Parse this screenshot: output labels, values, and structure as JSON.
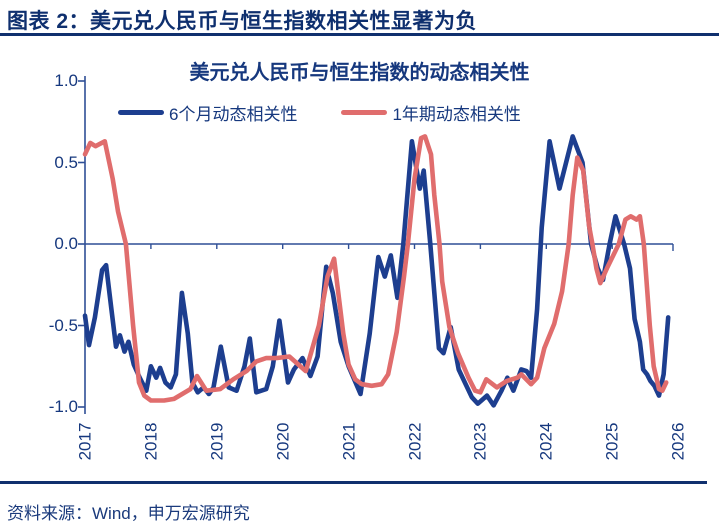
{
  "page": {
    "header_title": "图表 2：美元兑人民币与恒生指数相关性显著为负",
    "footer_source": "资料来源：Wind，申万宏源研究"
  },
  "colors": {
    "header_navy": "#0e2f6e",
    "axis_navy": "#2f4f96",
    "blue_line": "#1d3e8f",
    "red_line": "#e06d6d"
  },
  "chart_data": {
    "type": "line",
    "title": "美元兑人民币与恒生指数的动态相关性",
    "x_range": [
      2017,
      2026
    ],
    "y_range": [
      -1.0,
      1.0
    ],
    "y_ticks": [
      "1.0",
      "0.5",
      "0.0",
      "-0.5",
      "-1.0"
    ],
    "y_tick_values": [
      1.0,
      0.5,
      0.0,
      -0.5,
      -1.0
    ],
    "x_ticks": [
      "2017",
      "2018",
      "2019",
      "2020",
      "2021",
      "2022",
      "2023",
      "2024",
      "2025",
      "2026"
    ],
    "x_tick_values": [
      2017,
      2018,
      2019,
      2020,
      2021,
      2022,
      2023,
      2024,
      2025,
      2026
    ],
    "legend_position": "top",
    "grid": "zero-baseline-only",
    "series": [
      {
        "name": "6个月动态相关性",
        "color": "#1d3e8f",
        "points": [
          [
            2017.0,
            -0.44
          ],
          [
            2017.06,
            -0.62
          ],
          [
            2017.15,
            -0.45
          ],
          [
            2017.26,
            -0.16
          ],
          [
            2017.32,
            -0.13
          ],
          [
            2017.4,
            -0.4
          ],
          [
            2017.47,
            -0.63
          ],
          [
            2017.53,
            -0.56
          ],
          [
            2017.6,
            -0.66
          ],
          [
            2017.66,
            -0.6
          ],
          [
            2017.74,
            -0.74
          ],
          [
            2017.83,
            -0.82
          ],
          [
            2017.93,
            -0.9
          ],
          [
            2018.0,
            -0.75
          ],
          [
            2018.08,
            -0.82
          ],
          [
            2018.14,
            -0.76
          ],
          [
            2018.22,
            -0.85
          ],
          [
            2018.3,
            -0.88
          ],
          [
            2018.38,
            -0.8
          ],
          [
            2018.47,
            -0.3
          ],
          [
            2018.56,
            -0.55
          ],
          [
            2018.63,
            -0.85
          ],
          [
            2018.71,
            -0.91
          ],
          [
            2018.8,
            -0.88
          ],
          [
            2018.88,
            -0.92
          ],
          [
            2018.95,
            -0.88
          ],
          [
            2019.06,
            -0.63
          ],
          [
            2019.18,
            -0.88
          ],
          [
            2019.3,
            -0.9
          ],
          [
            2019.42,
            -0.75
          ],
          [
            2019.5,
            -0.58
          ],
          [
            2019.6,
            -0.91
          ],
          [
            2019.75,
            -0.89
          ],
          [
            2019.85,
            -0.75
          ],
          [
            2019.95,
            -0.47
          ],
          [
            2020.08,
            -0.85
          ],
          [
            2020.17,
            -0.77
          ],
          [
            2020.3,
            -0.7
          ],
          [
            2020.42,
            -0.81
          ],
          [
            2020.53,
            -0.69
          ],
          [
            2020.66,
            -0.14
          ],
          [
            2020.76,
            -0.3
          ],
          [
            2020.88,
            -0.6
          ],
          [
            2021.0,
            -0.75
          ],
          [
            2021.18,
            -0.92
          ],
          [
            2021.32,
            -0.55
          ],
          [
            2021.45,
            -0.08
          ],
          [
            2021.55,
            -0.2
          ],
          [
            2021.64,
            -0.07
          ],
          [
            2021.74,
            -0.33
          ],
          [
            2021.83,
            0.0
          ],
          [
            2021.96,
            0.63
          ],
          [
            2022.08,
            0.34
          ],
          [
            2022.14,
            0.45
          ],
          [
            2022.24,
            0.0
          ],
          [
            2022.37,
            -0.64
          ],
          [
            2022.44,
            -0.67
          ],
          [
            2022.55,
            -0.51
          ],
          [
            2022.67,
            -0.77
          ],
          [
            2022.87,
            -0.94
          ],
          [
            2022.96,
            -0.98
          ],
          [
            2023.1,
            -0.93
          ],
          [
            2023.2,
            -0.99
          ],
          [
            2023.32,
            -0.9
          ],
          [
            2023.41,
            -0.82
          ],
          [
            2023.5,
            -0.9
          ],
          [
            2023.62,
            -0.77
          ],
          [
            2023.7,
            -0.78
          ],
          [
            2023.77,
            -0.82
          ],
          [
            2023.86,
            -0.4
          ],
          [
            2023.93,
            0.1
          ],
          [
            2024.05,
            0.63
          ],
          [
            2024.2,
            0.34
          ],
          [
            2024.4,
            0.66
          ],
          [
            2024.55,
            0.5
          ],
          [
            2024.68,
            0.0
          ],
          [
            2024.78,
            -0.15
          ],
          [
            2024.86,
            -0.22
          ],
          [
            2024.96,
            0.0
          ],
          [
            2025.05,
            0.17
          ],
          [
            2025.18,
            0.0
          ],
          [
            2025.27,
            -0.15
          ],
          [
            2025.34,
            -0.46
          ],
          [
            2025.42,
            -0.6
          ],
          [
            2025.47,
            -0.77
          ],
          [
            2025.53,
            -0.8
          ],
          [
            2025.58,
            -0.84
          ],
          [
            2025.64,
            -0.87
          ],
          [
            2025.71,
            -0.93
          ],
          [
            2025.78,
            -0.8
          ],
          [
            2025.85,
            -0.45
          ]
        ]
      },
      {
        "name": "1年期动态相关性",
        "color": "#e06d6d",
        "points": [
          [
            2017.0,
            0.55
          ],
          [
            2017.08,
            0.62
          ],
          [
            2017.16,
            0.6
          ],
          [
            2017.3,
            0.63
          ],
          [
            2017.42,
            0.4
          ],
          [
            2017.5,
            0.2
          ],
          [
            2017.62,
            0.0
          ],
          [
            2017.73,
            -0.5
          ],
          [
            2017.82,
            -0.85
          ],
          [
            2017.9,
            -0.93
          ],
          [
            2018.0,
            -0.96
          ],
          [
            2018.2,
            -0.96
          ],
          [
            2018.35,
            -0.95
          ],
          [
            2018.6,
            -0.89
          ],
          [
            2018.7,
            -0.81
          ],
          [
            2018.84,
            -0.9
          ],
          [
            2019.05,
            -0.89
          ],
          [
            2019.25,
            -0.83
          ],
          [
            2019.45,
            -0.78
          ],
          [
            2019.6,
            -0.72
          ],
          [
            2019.75,
            -0.7
          ],
          [
            2019.9,
            -0.7
          ],
          [
            2020.1,
            -0.69
          ],
          [
            2020.35,
            -0.78
          ],
          [
            2020.55,
            -0.5
          ],
          [
            2020.68,
            -0.2
          ],
          [
            2020.78,
            -0.09
          ],
          [
            2020.92,
            -0.55
          ],
          [
            2021.0,
            -0.74
          ],
          [
            2021.1,
            -0.83
          ],
          [
            2021.2,
            -0.86
          ],
          [
            2021.35,
            -0.87
          ],
          [
            2021.5,
            -0.86
          ],
          [
            2021.6,
            -0.8
          ],
          [
            2021.73,
            -0.54
          ],
          [
            2021.84,
            -0.2
          ],
          [
            2021.9,
            0.0
          ],
          [
            2022.0,
            0.4
          ],
          [
            2022.1,
            0.65
          ],
          [
            2022.16,
            0.66
          ],
          [
            2022.25,
            0.55
          ],
          [
            2022.3,
            0.3
          ],
          [
            2022.38,
            0.0
          ],
          [
            2022.42,
            -0.23
          ],
          [
            2022.53,
            -0.51
          ],
          [
            2022.66,
            -0.67
          ],
          [
            2022.82,
            -0.82
          ],
          [
            2022.92,
            -0.9
          ],
          [
            2023.0,
            -0.91
          ],
          [
            2023.09,
            -0.83
          ],
          [
            2023.25,
            -0.88
          ],
          [
            2023.4,
            -0.84
          ],
          [
            2023.56,
            -0.82
          ],
          [
            2023.62,
            -0.8
          ],
          [
            2023.77,
            -0.86
          ],
          [
            2023.86,
            -0.82
          ],
          [
            2023.97,
            -0.64
          ],
          [
            2024.12,
            -0.49
          ],
          [
            2024.24,
            -0.29
          ],
          [
            2024.34,
            0.0
          ],
          [
            2024.4,
            0.3
          ],
          [
            2024.47,
            0.53
          ],
          [
            2024.56,
            0.45
          ],
          [
            2024.65,
            0.11
          ],
          [
            2024.7,
            0.0
          ],
          [
            2024.76,
            -0.15
          ],
          [
            2024.82,
            -0.24
          ],
          [
            2024.92,
            -0.15
          ],
          [
            2025.1,
            0.0
          ],
          [
            2025.2,
            0.15
          ],
          [
            2025.28,
            0.17
          ],
          [
            2025.37,
            0.15
          ],
          [
            2025.42,
            0.17
          ],
          [
            2025.48,
            0.0
          ],
          [
            2025.57,
            -0.5
          ],
          [
            2025.63,
            -0.75
          ],
          [
            2025.71,
            -0.89
          ],
          [
            2025.76,
            -0.9
          ],
          [
            2025.82,
            -0.85
          ]
        ]
      }
    ]
  }
}
